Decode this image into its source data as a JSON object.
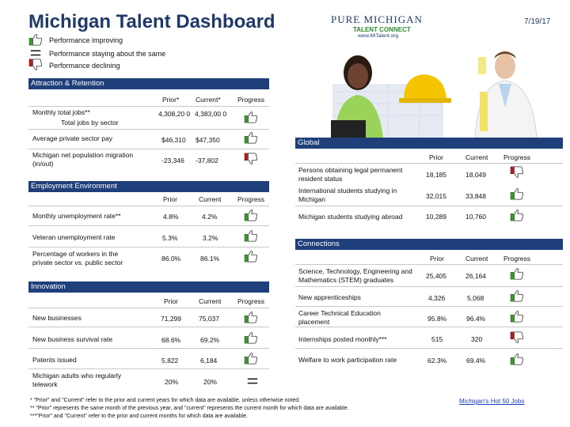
{
  "header": {
    "title": "Michigan Talent Dashboard",
    "date": "7/19/17"
  },
  "logo": {
    "line1": "PURE MICHIGAN",
    "line2": "TALENT CONNECT",
    "line3": "www.MiTalent.org"
  },
  "legend": [
    {
      "icon": "thumbs-up",
      "label": "Performance improving"
    },
    {
      "icon": "equals",
      "label": "Performance staying about the same"
    },
    {
      "icon": "thumbs-down",
      "label": "Performance declining"
    }
  ],
  "attraction": {
    "title": "Attraction & Retention",
    "col_prior": "Prior*",
    "col_current": "Current*",
    "col_progress": "Progress",
    "rows": [
      {
        "label": "Monthly total jobs**",
        "sublabel": "Total jobs by sector",
        "prior": "4,308,20 0",
        "current": "4,383,00 0",
        "trend": "up"
      },
      {
        "label": "Average private sector pay",
        "prior": "$46,310",
        "current": "$47,350",
        "trend": "up"
      },
      {
        "label": "Michigan net population migration (in/out)",
        "prior": "-23,346",
        "current": "-37,802",
        "trend": "down"
      }
    ]
  },
  "employment": {
    "title": "Employment Environment",
    "col_prior": "Prior",
    "col_current": "Current",
    "col_progress": "Progress",
    "rows": [
      {
        "label": "Monthly unemployment rate**",
        "prior": "4.8%",
        "current": "4.2%",
        "trend": "up"
      },
      {
        "label": "Veteran unemployment rate",
        "prior": "5.3%",
        "current": "3.2%",
        "trend": "up"
      },
      {
        "label": "Percentage of workers in the private sector vs. public sector",
        "prior": "86.0%",
        "current": "86.1%",
        "trend": "up"
      }
    ]
  },
  "innovation": {
    "title": "Innovation",
    "col_prior": "Prior",
    "col_current": "Current",
    "col_progress": "Progress",
    "rows": [
      {
        "label": "New businesses",
        "prior": "71,299",
        "current": "75,037",
        "trend": "up"
      },
      {
        "label": "New business survival rate",
        "prior": "68.6%",
        "current": "69.2%",
        "trend": "up"
      },
      {
        "label": "Patents issued",
        "prior": "5,822",
        "current": "6,184",
        "trend": "up"
      },
      {
        "label": "Michigan adults who regularly telework",
        "prior": "20%",
        "current": "20%",
        "trend": "same"
      }
    ]
  },
  "global": {
    "title": "Global",
    "col_prior": "Prior",
    "col_current": "Current",
    "col_progress": "Progress",
    "rows": [
      {
        "label": "Persons obtaining legal permanent resident status",
        "prior": "18,185",
        "current": "18,049",
        "trend": "down"
      },
      {
        "label": "International students studying in Michigan",
        "prior": "32,015",
        "current": "33,848",
        "trend": "up"
      },
      {
        "label": "Michigan students studying abroad",
        "prior": "10,289",
        "current": "10,760",
        "trend": "up"
      }
    ]
  },
  "connections": {
    "title": "Connections",
    "col_prior": "Prior",
    "col_current": "Current",
    "col_progress": "Progress",
    "rows": [
      {
        "label": "Science, Technology, Engineering and Mathematics (STEM) graduates",
        "prior": "25,405",
        "current": "26,164",
        "trend": "up"
      },
      {
        "label": "New apprenticeships",
        "prior": "4,326",
        "current": "5,068",
        "trend": "up"
      },
      {
        "label": "Career Technical Education placement",
        "prior": "95.8%",
        "current": "96.4%",
        "trend": "up"
      },
      {
        "label": "Internships posted monthly***",
        "prior": "515",
        "current": "320",
        "trend": "down"
      },
      {
        "label": "Welfare to work participation rate",
        "prior": "62.3%",
        "current": "69.4%",
        "trend": "up"
      }
    ]
  },
  "footnotes": {
    "n1": "* \"Prior\" and \"Current\" refer to the prior and current years for which data are available, unless otherwise noted.",
    "n2": "** \"Prior\" represents the same month of the previous year, and \"current\" represents the current month for which data are available.",
    "n3": "***\"Prior\" and \"Current\" refer to the prior and current months for which data are available."
  },
  "link": {
    "label": "Michigan's Hot 50 Jobs"
  },
  "colors": {
    "navy": "#1f3f7a",
    "up": "#3a9a2a",
    "down": "#b01c1c"
  }
}
